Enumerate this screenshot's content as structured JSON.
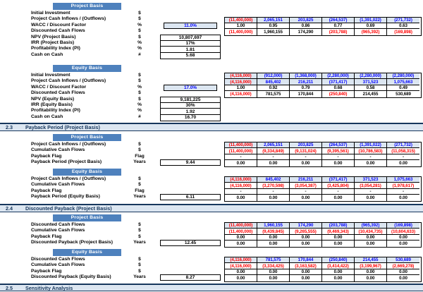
{
  "colors": {
    "header_bar": "#4e81bd",
    "band_fill": "#dce6f1",
    "band_text": "#17375d",
    "input_cell_fill": "#dce6f1",
    "input_text_blue": "#0000ff",
    "negative_red": "#ff0000",
    "text_black": "#000000"
  },
  "bands": [
    {
      "num": "2.3",
      "title": "Payback Period (Project Basis)"
    },
    {
      "num": "2.4",
      "title": "Discounted Payback (Project Basis)"
    },
    {
      "num": "2.5",
      "title": "Sensitivity Analysis"
    }
  ],
  "sections": [
    {
      "header": "Project Basis",
      "rows": [
        {
          "label": "Initial Investment",
          "unit": "$"
        },
        {
          "label": "Project Cash Inflows / (Outflows)",
          "unit": "$"
        },
        {
          "label": "WACC / Discount Factor",
          "unit": "%"
        },
        {
          "label": "Discounted Cash Flows",
          "unit": "$"
        },
        {
          "label": "NPV (Project Basis)",
          "unit": "$"
        },
        {
          "label": "IRR (Project Basis)",
          "unit": "%"
        },
        {
          "label": "Profitability Index (PI)",
          "unit": "%"
        },
        {
          "label": "Cash on Cash",
          "unit": "#"
        }
      ],
      "input_value": "11.0%",
      "metrics": [
        "10,807,697",
        "17%",
        "1.81",
        "5.68"
      ],
      "table": {
        "rows": [
          {
            "fill": "blue",
            "cells": [
              "(11,400,000)",
              "2,065,151",
              "203,825",
              "(264,537)",
              "(1,391,022)",
              "(271,732)"
            ],
            "colors": [
              "red",
              "blue",
              "blue",
              "blue",
              "blue",
              "blue"
            ]
          },
          {
            "fill": "white",
            "cells": [
              "1.00",
              "0.95",
              "0.86",
              "0.77",
              "0.69",
              "0.63"
            ],
            "colors": [
              "black",
              "black",
              "black",
              "black",
              "black",
              "black"
            ]
          },
          {
            "fill": "white",
            "cells": [
              "(11,400,000)",
              "1,960,155",
              "174,290",
              "(203,788)",
              "(965,392)",
              "(169,898)"
            ],
            "colors": [
              "red",
              "black",
              "black",
              "red",
              "red",
              "red"
            ]
          }
        ]
      }
    },
    {
      "header": "Equity Basis",
      "rows": [
        {
          "label": "Initial Investment",
          "unit": "$"
        },
        {
          "label": "Project Cash Inflows / (Outflows)",
          "unit": "$"
        },
        {
          "label": "WACC / Discount Factor",
          "unit": "%"
        },
        {
          "label": "Discounted Cash Flows",
          "unit": "$"
        },
        {
          "label": "NPV (Equity Basis)",
          "unit": "$"
        },
        {
          "label": "IRR (Equity Basis)",
          "unit": "%"
        },
        {
          "label": "Profitability Index (PI)",
          "unit": "%"
        },
        {
          "label": "Cash on Cash",
          "unit": "#"
        }
      ],
      "input_value": "17.0%",
      "metrics": [
        "9,181,225",
        "30%",
        "1.92",
        "16.70"
      ],
      "table": {
        "rows": [
          {
            "fill": "blue",
            "cells": [
              "(4,116,000)",
              "(912,000)",
              "(1,368,000)",
              "(2,280,000)",
              "(2,280,000)",
              "(2,280,000)"
            ],
            "colors": [
              "red",
              "blue",
              "blue",
              "blue",
              "blue",
              "blue"
            ]
          },
          {
            "fill": "blue",
            "cells": [
              "(4,116,000)",
              "845,402",
              "216,211",
              "(371,417)",
              "371,523",
              "1,075,663"
            ],
            "colors": [
              "red",
              "blue",
              "blue",
              "blue",
              "blue",
              "blue"
            ]
          },
          {
            "fill": "white",
            "cells": [
              "1.00",
              "0.92",
              "0.79",
              "0.68",
              "0.58",
              "0.49"
            ],
            "colors": [
              "black",
              "black",
              "black",
              "black",
              "black",
              "black"
            ]
          },
          {
            "fill": "white",
            "cells": [
              "(4,116,000)",
              "781,575",
              "170,844",
              "(250,840)",
              "214,455",
              "530,689"
            ],
            "colors": [
              "red",
              "black",
              "black",
              "red",
              "black",
              "black"
            ]
          }
        ]
      }
    },
    {
      "header": "Project Basis",
      "rows": [
        {
          "label": "Project Cash Inflows / (Outflows)",
          "unit": "$"
        },
        {
          "label": "Cumulative Cash Flows",
          "unit": "$"
        },
        {
          "label": "Payback Flag",
          "unit": "Flag"
        },
        {
          "label": "Payback Period (Project Basis)",
          "unit": "Years"
        }
      ],
      "payback_value": "9.44",
      "table": {
        "rows": [
          {
            "fill": "blue",
            "cells": [
              "(11,400,000)",
              "2,065,151",
              "203,825",
              "(264,537)",
              "(1,391,022)",
              "(271,732)"
            ],
            "colors": [
              "red",
              "blue",
              "blue",
              "blue",
              "blue",
              "blue"
            ]
          },
          {
            "fill": "white",
            "cells": [
              "(11,400,000)",
              "(9,334,849)",
              "(9,131,024)",
              "(9,395,561)",
              "(10,786,583)",
              "(11,058,315)"
            ],
            "colors": [
              "red",
              "red",
              "red",
              "red",
              "red",
              "red"
            ]
          },
          {
            "fill": "white",
            "cells": [
              "-",
              "-",
              "-",
              "-",
              "-",
              "-"
            ],
            "colors": [
              "black",
              "black",
              "black",
              "black",
              "black",
              "black"
            ]
          },
          {
            "fill": "white",
            "cells": [
              "0.00",
              "0.00",
              "0.00",
              "0.00",
              "0.00",
              "0.00"
            ],
            "colors": [
              "black",
              "black",
              "black",
              "black",
              "black",
              "black"
            ]
          }
        ]
      }
    },
    {
      "header": "Equity Basis",
      "rows": [
        {
          "label": "Project Cash Inflows / (Outflows)",
          "unit": "$"
        },
        {
          "label": "Cumulative Cash Flows",
          "unit": "$"
        },
        {
          "label": "Payback Flag",
          "unit": "Flag"
        },
        {
          "label": "Payback Period (Equity Basis)",
          "unit": "Years"
        }
      ],
      "payback_value": "6.11",
      "table": {
        "rows": [
          {
            "fill": "blue",
            "cells": [
              "(4,116,000)",
              "845,402",
              "216,211",
              "(371,417)",
              "371,523",
              "1,075,663"
            ],
            "colors": [
              "red",
              "blue",
              "blue",
              "blue",
              "blue",
              "blue"
            ]
          },
          {
            "fill": "white",
            "cells": [
              "(4,116,000)",
              "(3,270,598)",
              "(3,054,387)",
              "(3,425,804)",
              "(3,054,281)",
              "(1,978,617)"
            ],
            "colors": [
              "red",
              "red",
              "red",
              "red",
              "red",
              "red"
            ]
          },
          {
            "fill": "white",
            "cells": [
              "-",
              "-",
              "-",
              "-",
              "-",
              "-"
            ],
            "colors": [
              "black",
              "black",
              "black",
              "black",
              "black",
              "black"
            ]
          },
          {
            "fill": "white",
            "cells": [
              "0.00",
              "0.00",
              "0.00",
              "0.00",
              "0.00",
              "0.00"
            ],
            "colors": [
              "black",
              "black",
              "black",
              "black",
              "black",
              "black"
            ]
          }
        ]
      }
    },
    {
      "header": "Project Basis",
      "rows": [
        {
          "label": "Discounted Cash Flows",
          "unit": "$"
        },
        {
          "label": "Cumulative Cash Flows",
          "unit": "$"
        },
        {
          "label": "Payback Flag",
          "unit": "$"
        },
        {
          "label": "Discounted Payback (Project Basis)",
          "unit": "Years"
        }
      ],
      "payback_value": "12.45",
      "table": {
        "rows": [
          {
            "fill": "blue",
            "cells": [
              "(11,400,000)",
              "1,960,155",
              "174,290",
              "(203,788)",
              "(965,392)",
              "(169,898)"
            ],
            "colors": [
              "red",
              "blue",
              "blue",
              "blue",
              "blue",
              "blue"
            ]
          },
          {
            "fill": "white",
            "cells": [
              "(11,400,000)",
              "(9,439,845)",
              "(9,265,555)",
              "(9,469,343)",
              "(10,434,735)",
              "(10,604,633)"
            ],
            "colors": [
              "red",
              "red",
              "red",
              "red",
              "red",
              "red"
            ]
          },
          {
            "fill": "white",
            "cells": [
              "0.00",
              "0.00",
              "0.00",
              "0.00",
              "0.00",
              "0.00"
            ],
            "colors": [
              "black",
              "black",
              "black",
              "black",
              "black",
              "black"
            ]
          },
          {
            "fill": "white",
            "cells": [
              "0.00",
              "0.00",
              "0.00",
              "0.00",
              "0.00",
              "0.00"
            ],
            "colors": [
              "black",
              "black",
              "black",
              "black",
              "black",
              "black"
            ]
          }
        ]
      }
    },
    {
      "header": "Equity Basis",
      "rows": [
        {
          "label": "Discounted Cash Flows",
          "unit": "$"
        },
        {
          "label": "Cumulative Cash Flows",
          "unit": "$"
        },
        {
          "label": "Payback Flag",
          "unit": "$"
        },
        {
          "label": "Discounted Payback (Equity Basis)",
          "unit": "Years"
        }
      ],
      "payback_value": "8.27",
      "table": {
        "rows": [
          {
            "fill": "blue",
            "cells": [
              "(4,116,000)",
              "781,575",
              "170,844",
              "(250,840)",
              "214,455",
              "530,689"
            ],
            "colors": [
              "red",
              "blue",
              "blue",
              "blue",
              "blue",
              "blue"
            ]
          },
          {
            "fill": "white",
            "cells": [
              "(4,116,000)",
              "(3,334,425)",
              "(3,163,582)",
              "(3,414,422)",
              "(3,199,967)",
              "(2,669,278)"
            ],
            "colors": [
              "red",
              "red",
              "red",
              "red",
              "red",
              "red"
            ]
          },
          {
            "fill": "white",
            "cells": [
              "0.00",
              "0.00",
              "0.00",
              "0.00",
              "0.00",
              "0.00"
            ],
            "colors": [
              "black",
              "black",
              "black",
              "black",
              "black",
              "black"
            ]
          },
          {
            "fill": "white",
            "cells": [
              "0.00",
              "0.00",
              "0.00",
              "0.00",
              "0.00",
              "0.00"
            ],
            "colors": [
              "black",
              "black",
              "black",
              "black",
              "black",
              "black"
            ]
          }
        ]
      }
    }
  ]
}
